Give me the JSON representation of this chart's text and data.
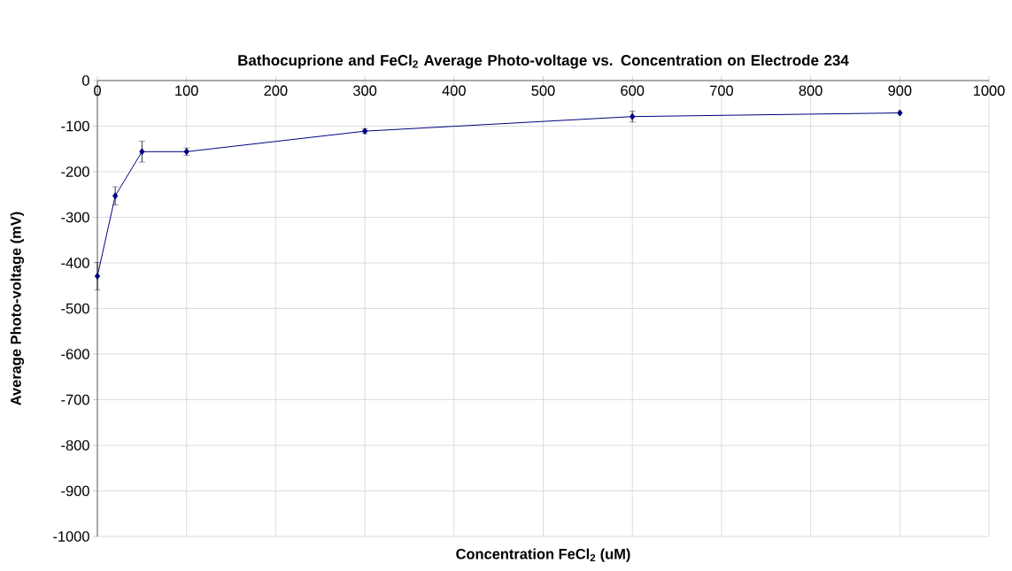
{
  "chart_data": {
    "type": "line",
    "title": "Bathocuprione and FeCl$_{2}$ Average Photo-voltage vs. Concentration on Electrode 234",
    "xlabel": "Concentration FeCl$_{2}$ (uM)",
    "ylabel": "Average Photo-voltage (mV)",
    "x": [
      0,
      20,
      50,
      100,
      300,
      600,
      900
    ],
    "series": [
      {
        "color": "#000080",
        "values": [
          -429,
          -253,
          -156,
          -156,
          -111,
          -79,
          -71
        ],
        "errors": [
          30,
          20,
          23,
          8,
          5,
          12,
          null
        ]
      }
    ],
    "xlim": [
      0,
      1000
    ],
    "xticks": [
      0,
      100,
      200,
      300,
      400,
      500,
      600,
      700,
      800,
      900,
      1000
    ],
    "ylim": [
      -1000,
      0
    ],
    "yticks": [
      -1000,
      -900,
      -800,
      -700,
      -600,
      -500,
      -400,
      -300,
      -200,
      -100,
      0
    ],
    "grid": true,
    "marker": "diamond",
    "line_style": "solid"
  }
}
